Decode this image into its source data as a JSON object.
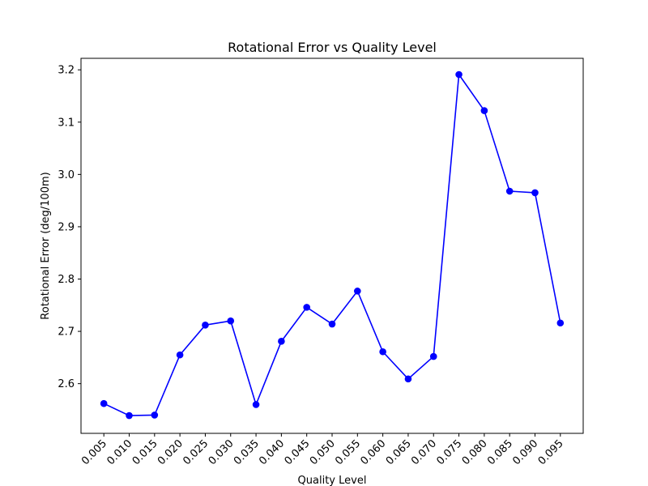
{
  "chart_data": {
    "type": "line",
    "title": "Rotational Error vs Quality Level",
    "xlabel": "Quality Level",
    "ylabel": "Rotational Error (deg/100m)",
    "ylim": [
      2.505,
      3.222
    ],
    "yticks": [
      2.6,
      2.7,
      2.8,
      2.9,
      3.0,
      3.1,
      3.2
    ],
    "ytick_labels": [
      "2.6",
      "2.7",
      "2.8",
      "2.9",
      "3.0",
      "3.1",
      "3.2"
    ],
    "grid": false,
    "legend": "none",
    "x": [
      "0.005",
      "0.010",
      "0.015",
      "0.020",
      "0.025",
      "0.030",
      "0.035",
      "0.040",
      "0.045",
      "0.050",
      "0.055",
      "0.060",
      "0.065",
      "0.070",
      "0.075",
      "0.080",
      "0.085",
      "0.090",
      "0.095"
    ],
    "series": [
      {
        "color": "#0000ff",
        "marker": "circle",
        "values": [
          2.562,
          2.539,
          2.54,
          2.655,
          2.712,
          2.72,
          2.56,
          2.681,
          2.746,
          2.714,
          2.777,
          2.661,
          2.609,
          2.652,
          3.191,
          3.122,
          2.968,
          2.965,
          2.716
        ]
      }
    ]
  }
}
